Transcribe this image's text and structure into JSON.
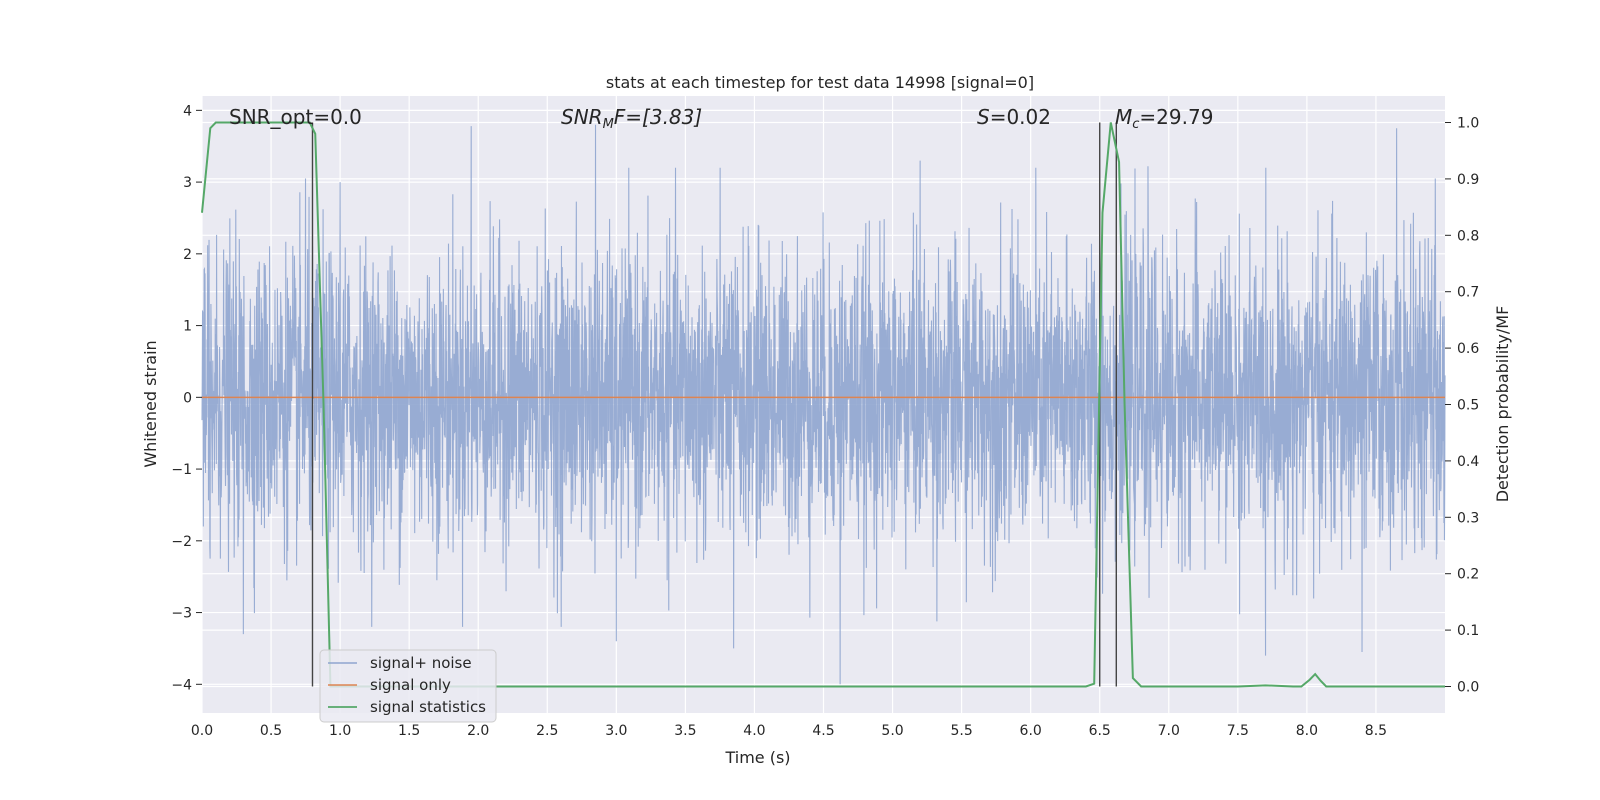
{
  "chart_data": {
    "type": "line",
    "title": "stats at each timestep for test data 14998 [signal=0]",
    "xlabel": "Time (s)",
    "ylabel": "Whitened strain",
    "ylabel_right": "Detection probability/MF",
    "xlim": [
      0,
      9
    ],
    "ylim": [
      -4.4,
      4.2
    ],
    "ylim_right": [
      -0.047,
      1.047
    ],
    "grid": true,
    "legend_position": "lower left",
    "x_ticks": [
      "0.0",
      "0.5",
      "1.0",
      "1.5",
      "2.0",
      "2.5",
      "3.0",
      "3.5",
      "4.0",
      "4.5",
      "5.0",
      "5.5",
      "6.0",
      "6.5",
      "7.0",
      "7.5",
      "8.0",
      "8.5"
    ],
    "y_ticks": [
      "4",
      "3",
      "2",
      "1",
      "0",
      "−1",
      "−2",
      "−3",
      "−4"
    ],
    "y_ticks_right": [
      "1.0",
      "0.9",
      "0.8",
      "0.7",
      "0.6",
      "0.5",
      "0.4",
      "0.3",
      "0.2",
      "0.1",
      "0.0"
    ],
    "annotations": {
      "snr_opt": "SNR_opt=0.0",
      "snr_mf_base": "SNR",
      "snr_mf_sub": "M",
      "snr_mf_rest": "F=[3.83]",
      "s_base": "S",
      "s_rest": "=0.02",
      "mc_base": "M",
      "mc_sub": "c",
      "mc_rest": "=29.79"
    },
    "vertical_lines_x": [
      0.8,
      6.5,
      6.62
    ],
    "series": [
      {
        "name": "signal+ noise",
        "color": "#8fa5cf",
        "description_of_values": "whitened noise, amplitude mostly within ±2.5, peaks to about 3.8 and down to about -4",
        "peaks": [
          {
            "x": 0.75,
            "y": 3.05
          },
          {
            "x": 1.0,
            "y": 3.0
          },
          {
            "x": 1.95,
            "y": 3.78
          },
          {
            "x": 2.85,
            "y": 3.8
          },
          {
            "x": 3.85,
            "y": 3.57
          },
          {
            "x": 5.2,
            "y": 3.3
          },
          {
            "x": 6.85,
            "y": 3.22
          },
          {
            "x": 8.65,
            "y": 3.75
          },
          {
            "x": 8.93,
            "y": 3.05
          },
          {
            "x": 0.3,
            "y": -3.3
          },
          {
            "x": 2.6,
            "y": -3.2
          },
          {
            "x": 3.0,
            "y": -3.4
          },
          {
            "x": 3.85,
            "y": -3.5
          },
          {
            "x": 4.62,
            "y": -4.0
          },
          {
            "x": 7.7,
            "y": -3.6
          },
          {
            "x": 8.4,
            "y": -3.55
          }
        ]
      },
      {
        "name": "signal only",
        "color": "#dd8452",
        "x": [
          0,
          9
        ],
        "y": [
          0,
          0
        ]
      },
      {
        "name": "signal statistics",
        "color": "#55a868",
        "axis": "right",
        "x": [
          0,
          0.06,
          0.1,
          0.2,
          0.4,
          0.6,
          0.78,
          0.82,
          0.88,
          0.93,
          1.0,
          2.0,
          3.0,
          4.0,
          5.0,
          6.0,
          6.3,
          6.4,
          6.46,
          6.52,
          6.58,
          6.64,
          6.68,
          6.74,
          6.8,
          7.0,
          7.5,
          7.7,
          7.9,
          7.96,
          8.02,
          8.06,
          8.1,
          8.14,
          8.5,
          9.0
        ],
        "y": [
          0.84,
          0.99,
          1.0,
          1.0,
          1.0,
          1.0,
          1.0,
          0.98,
          0.5,
          0.0,
          0.0,
          0.0,
          0.0,
          0.0,
          0.0,
          0.0,
          0.0,
          0.0,
          0.005,
          0.84,
          1.0,
          0.93,
          0.5,
          0.015,
          0.0,
          0.0,
          0.0,
          0.002,
          0.0,
          0.0,
          0.012,
          0.022,
          0.01,
          0.0,
          0.0,
          0.0
        ]
      }
    ]
  }
}
